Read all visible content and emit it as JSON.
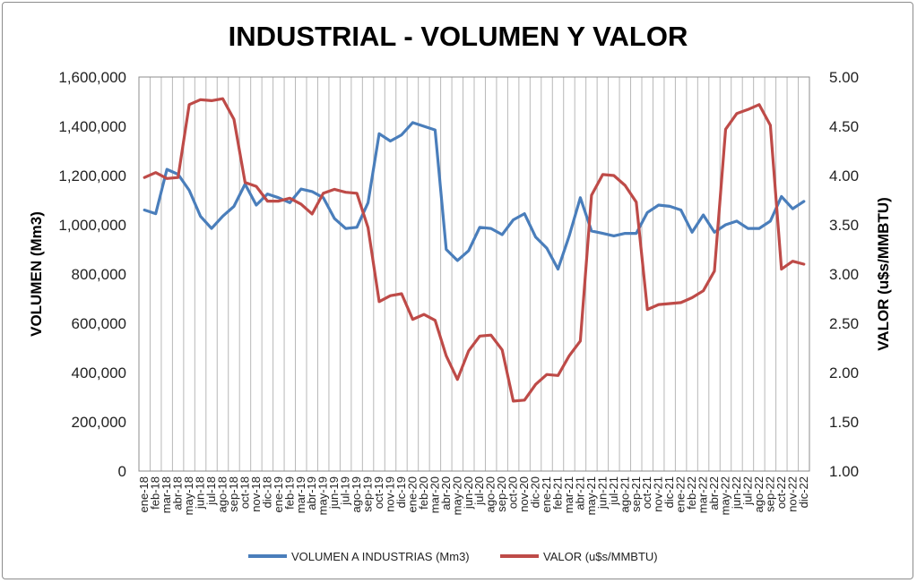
{
  "chart_data": {
    "type": "line",
    "title": "INDUSTRIAL - VOLUMEN Y VALOR",
    "ylabel_left": "VOLUMEN (Mm3)",
    "ylabel_right": "VALOR (u$s/MMBTU)",
    "ylim_left": [
      0,
      1600000
    ],
    "ylim_right": [
      1.0,
      5.0
    ],
    "yticks_left": [
      "0",
      "200,000",
      "400,000",
      "600,000",
      "800,000",
      "1,000,000",
      "1,200,000",
      "1,400,000",
      "1,600,000"
    ],
    "yticks_right": [
      "1.00",
      "1.50",
      "2.00",
      "2.50",
      "3.00",
      "3.50",
      "4.00",
      "4.50",
      "5.00"
    ],
    "grid": "vertical",
    "legend_position": "bottom",
    "categories": [
      "ene-18",
      "feb-18",
      "mar-18",
      "abr-18",
      "may-18",
      "jun-18",
      "jul-18",
      "ago-18",
      "sep-18",
      "oct-18",
      "nov-18",
      "dic-18",
      "ene-19",
      "feb-19",
      "mar-19",
      "abr-19",
      "may-19",
      "jun-19",
      "jul-19",
      "ago-19",
      "sep-19",
      "oct-19",
      "nov-19",
      "dic-19",
      "ene-20",
      "feb-20",
      "mar-20",
      "abr-20",
      "may-20",
      "jun-20",
      "jul-20",
      "ago-20",
      "sep-20",
      "oct-20",
      "nov-20",
      "dic-20",
      "ene-21",
      "feb-21",
      "mar-21",
      "abr-21",
      "may-21",
      "jun-21",
      "jul-21",
      "ago-21",
      "sep-21",
      "oct-21",
      "nov-21",
      "dic-21",
      "ene-22",
      "feb-22",
      "mar-22",
      "abr-22",
      "may-22",
      "jun-22",
      "jul-22",
      "ago-22",
      "sep-22",
      "oct-22",
      "nov-22",
      "dic-22"
    ],
    "series": [
      {
        "name": "VOLUMEN A INDUSTRIAS (Mm3)",
        "axis": "left",
        "color": "#4a7ebb",
        "values": [
          1060000,
          1045000,
          1225000,
          1205000,
          1140000,
          1035000,
          985000,
          1035000,
          1075000,
          1165000,
          1080000,
          1125000,
          1110000,
          1090000,
          1145000,
          1135000,
          1110000,
          1025000,
          985000,
          990000,
          1090000,
          1370000,
          1340000,
          1365000,
          1415000,
          1400000,
          1385000,
          900000,
          855000,
          895000,
          990000,
          985000,
          960000,
          1020000,
          1045000,
          950000,
          905000,
          820000,
          955000,
          1110000,
          975000,
          965000,
          955000,
          965000,
          965000,
          1050000,
          1080000,
          1075000,
          1060000,
          970000,
          1040000,
          970000,
          1000000,
          1015000,
          985000,
          985000,
          1015000,
          1115000,
          1065000,
          1095000
        ]
      },
      {
        "name": "VALOR (u$s/MMBTU)",
        "axis": "right",
        "color": "#be4b48",
        "values": [
          3.98,
          4.03,
          3.97,
          3.98,
          4.72,
          4.77,
          4.76,
          4.78,
          4.57,
          3.93,
          3.89,
          3.74,
          3.74,
          3.77,
          3.71,
          3.61,
          3.82,
          3.86,
          3.83,
          3.82,
          3.47,
          2.72,
          2.78,
          2.8,
          2.54,
          2.59,
          2.53,
          2.17,
          1.93,
          2.22,
          2.37,
          2.38,
          2.23,
          1.71,
          1.72,
          1.88,
          1.98,
          1.97,
          2.17,
          2.32,
          3.8,
          4.01,
          4.0,
          3.9,
          3.73,
          2.64,
          2.69,
          2.7,
          2.71,
          2.76,
          2.83,
          3.03,
          4.47,
          4.63,
          4.67,
          4.72,
          4.51,
          3.05,
          3.13,
          3.1
        ]
      }
    ]
  }
}
